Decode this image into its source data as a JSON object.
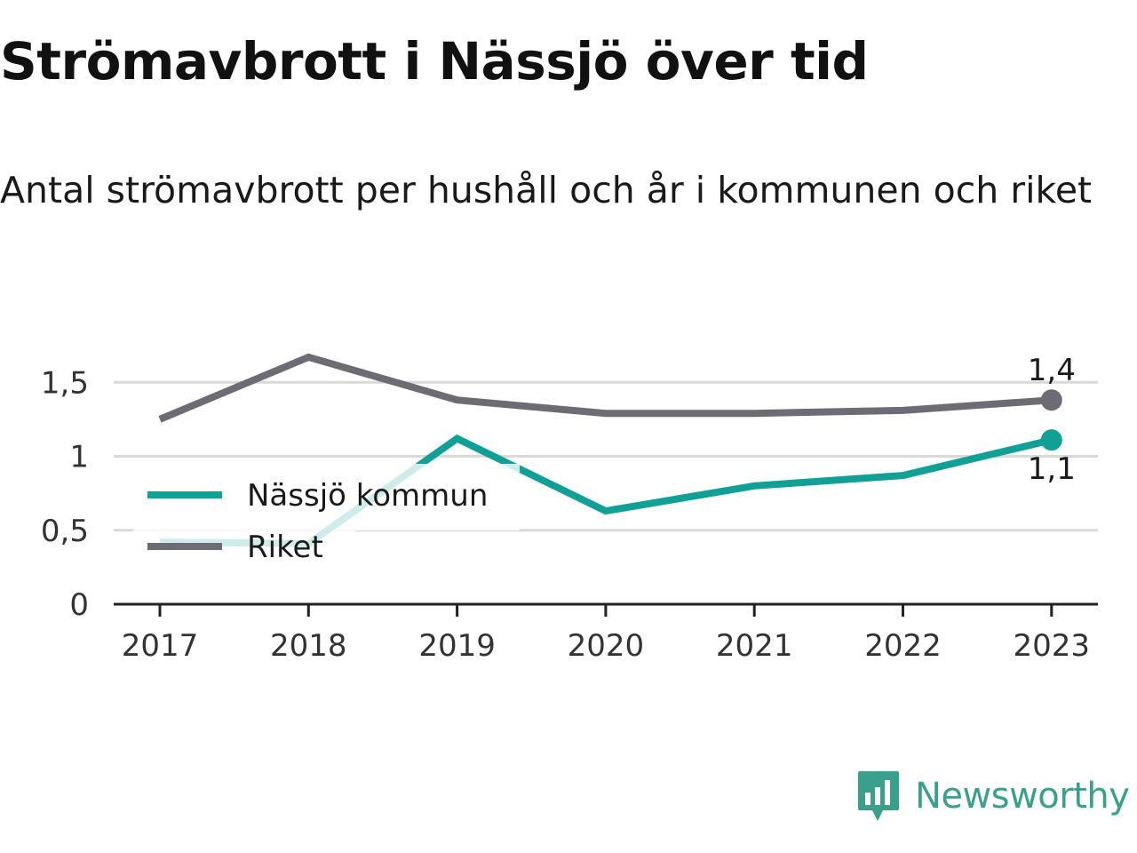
{
  "title": "Strömavbrott i Nässjö över tid",
  "subtitle": "Antal strömavbrott per hushåll och år i kommunen och riket",
  "brand": {
    "name": "Newsworthy",
    "icon": "newsworthy-logo-icon",
    "color": "#3aa08c"
  },
  "chart_data": {
    "type": "line",
    "categories": [
      "2017",
      "2018",
      "2019",
      "2020",
      "2021",
      "2022",
      "2023"
    ],
    "yticks": [
      0,
      0.5,
      1,
      1.5
    ],
    "ytick_labels": [
      "0",
      "0,5",
      "1",
      "1,5"
    ],
    "ylim": [
      0,
      1.9
    ],
    "grid": true,
    "legend_position": "inside-left",
    "series": [
      {
        "name": "Nässjö kommun",
        "color": "#10a096",
        "values": [
          0.42,
          0.41,
          1.12,
          0.63,
          0.8,
          0.87,
          1.11
        ],
        "end_label": "1,1"
      },
      {
        "name": "Riket",
        "color": "#6d6c74",
        "values": [
          1.25,
          1.67,
          1.38,
          1.29,
          1.29,
          1.31,
          1.38
        ],
        "end_label": "1,4"
      }
    ]
  }
}
